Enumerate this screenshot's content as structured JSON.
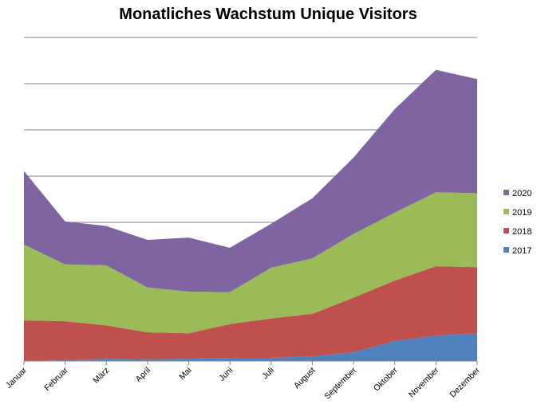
{
  "chart_data": {
    "type": "area",
    "stacked": true,
    "title": "Monatliches Wachstum Unique Visitors",
    "xlabel": "",
    "ylabel": "",
    "y_tick_labels_shown": false,
    "ylim": [
      0,
      7
    ],
    "gridlines": [
      1,
      2,
      3,
      4,
      5,
      6,
      7
    ],
    "grid": true,
    "legend_position": "right",
    "categories": [
      "Januar",
      "Februar",
      "März",
      "April",
      "Mai",
      "Juni",
      "Juli",
      "August",
      "September",
      "Oktober",
      "November",
      "Dezember"
    ],
    "series": [
      {
        "name": "2017",
        "color": "#4F81BD",
        "values": [
          0.0,
          0.02,
          0.05,
          0.04,
          0.05,
          0.07,
          0.07,
          0.1,
          0.19,
          0.43,
          0.55,
          0.6
        ]
      },
      {
        "name": "2018",
        "color": "#C0504D",
        "values": [
          0.88,
          0.84,
          0.72,
          0.58,
          0.55,
          0.73,
          0.85,
          0.92,
          1.18,
          1.31,
          1.5,
          1.43
        ]
      },
      {
        "name": "2019",
        "color": "#9BBB59",
        "values": [
          1.64,
          1.23,
          1.3,
          0.97,
          0.9,
          0.69,
          1.1,
          1.2,
          1.38,
          1.47,
          1.6,
          1.6
        ]
      },
      {
        "name": "2020",
        "color": "#8064A2",
        "values": [
          1.59,
          0.93,
          0.85,
          1.03,
          1.17,
          0.96,
          0.95,
          1.3,
          1.65,
          2.24,
          2.65,
          2.47
        ]
      }
    ]
  }
}
